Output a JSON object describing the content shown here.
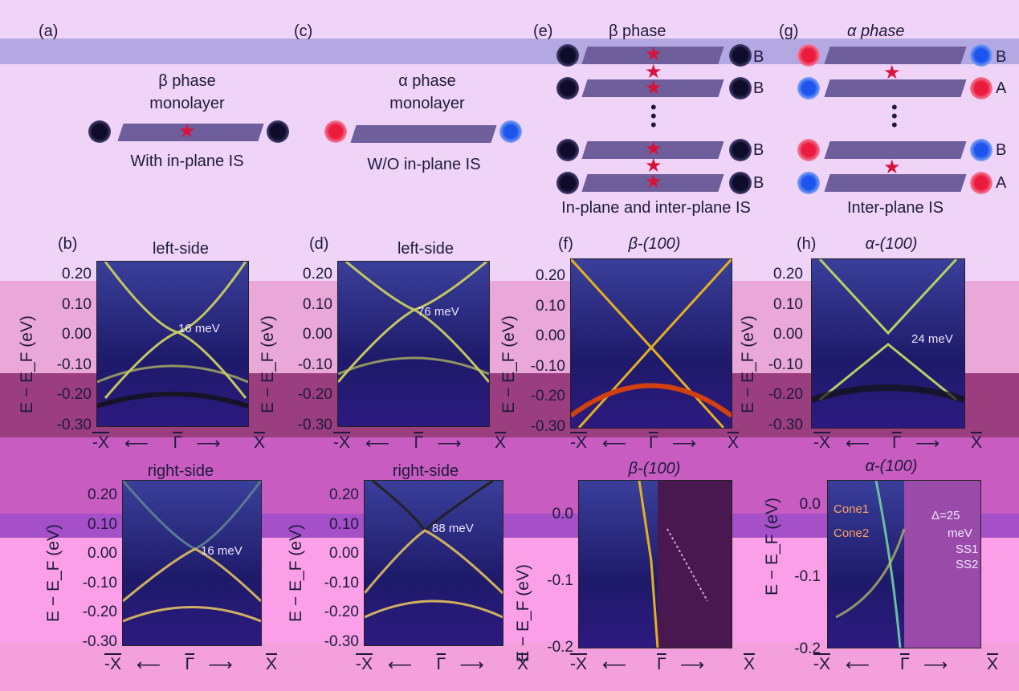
{
  "top": {
    "a": {
      "label": "(a)",
      "title1": "β  phase",
      "title2": "monolayer",
      "caption": "With in-plane IS"
    },
    "c": {
      "label": "(c)",
      "title1": "α phase",
      "title2": "monolayer",
      "caption": "W/O in-plane IS"
    },
    "e": {
      "label": "(e)",
      "title": "β  phase",
      "caption": "In-plane and inter-plane IS",
      "letters": [
        "B",
        "B",
        "B",
        "B"
      ]
    },
    "g": {
      "label": "(g)",
      "title": "α phase",
      "caption": "Inter-plane IS",
      "letters": [
        "B",
        "A",
        "B",
        "A"
      ]
    }
  },
  "panels": {
    "b": {
      "label": "(b)",
      "title": "left-side",
      "annotation": "16 meV",
      "yticks": [
        "0.20",
        "0.10",
        "0.00",
        "-0.10",
        "-0.20",
        "-0.30"
      ]
    },
    "d": {
      "label": "(d)",
      "title": "left-side",
      "annotation": "76 meV",
      "yticks": [
        "0.20",
        "0.10",
        "0.00",
        "-0.10",
        "-0.20",
        "-0.30"
      ]
    },
    "f": {
      "label": "(f)",
      "title": "β-(100)",
      "yticks": [
        "0.20",
        "0.10",
        "0.00",
        "-0.10",
        "-0.20",
        "-0.30"
      ]
    },
    "h": {
      "label": "(h)",
      "title": "α-(100)",
      "annotation": "24 meV",
      "yticks": [
        "0.20",
        "0.10",
        "0.00",
        "-0.10",
        "-0.20",
        "-0.30"
      ]
    },
    "b2": {
      "title": "right-side",
      "annotation": "16 meV",
      "yticks": [
        "0.20",
        "0.10",
        "0.00",
        "-0.10",
        "-0.20",
        "-0.30"
      ]
    },
    "d2": {
      "title": "right-side",
      "annotation": "88 meV",
      "yticks": [
        "0.20",
        "0.10",
        "0.00",
        "-0.10",
        "-0.20",
        "-0.30"
      ]
    },
    "f2": {
      "title": "β-(100)",
      "yticks": [
        "0.0",
        "-0.1",
        "-0.2"
      ]
    },
    "h2": {
      "title": "α-(100)",
      "yticks": [
        "0.0",
        "-0.1",
        "-0.2"
      ],
      "cone1": "Cone1",
      "cone2": "Cone2",
      "delta": "Δ=25",
      "meV": "meV",
      "ss1": "SS1",
      "ss2": "SS2"
    }
  },
  "axes": {
    "ylabel": "E − E_F (eV)",
    "xleft": "-X",
    "xmid": "Γ",
    "xright": "X"
  }
}
